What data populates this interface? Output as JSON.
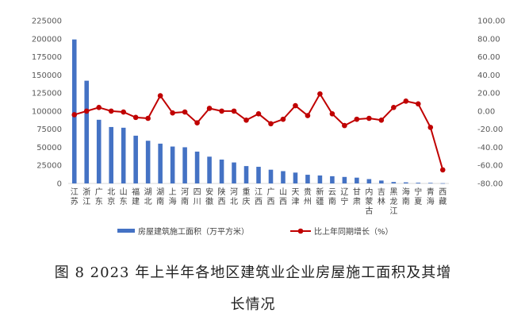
{
  "chart_data": {
    "type": "bar",
    "categories": [
      "江苏",
      "浙江",
      "广东",
      "北京",
      "山东",
      "福建",
      "湖北",
      "湖南",
      "上海",
      "河南",
      "四川",
      "安徽",
      "陕西",
      "河北",
      "重庆",
      "江西",
      "广西",
      "山西",
      "天津",
      "贵州",
      "新疆",
      "云南",
      "辽宁",
      "甘肃",
      "内蒙古",
      "吉林",
      "黑龙江",
      "海南",
      "宁夏",
      "青海",
      "西藏"
    ],
    "series": [
      {
        "name": "房屋建筑施工面积（万平方米）",
        "type": "bar",
        "axis": "left",
        "color": "#4472C4",
        "values": [
          199000,
          142000,
          88000,
          78000,
          77000,
          66000,
          59000,
          55000,
          51000,
          50000,
          44000,
          37000,
          33000,
          29000,
          24000,
          23000,
          19000,
          17000,
          15000,
          12000,
          11000,
          10000,
          9000,
          8000,
          6000,
          4000,
          2000,
          1500,
          1000,
          800,
          300
        ]
      },
      {
        "name": "比上年同期增长（%）",
        "type": "line",
        "axis": "right",
        "color": "#C00000",
        "values": [
          -4,
          0,
          4,
          0,
          -1,
          -7,
          -8,
          17,
          -2,
          -1,
          -13,
          3,
          0,
          0,
          -10,
          -3,
          -14,
          -9,
          6,
          -5,
          19,
          -3,
          -16,
          -9,
          -8,
          -10,
          4,
          11,
          8,
          -18,
          -65
        ]
      }
    ],
    "yAxisLeft": {
      "min": 0,
      "max": 225000,
      "step": 25000,
      "ticks": [
        "0",
        "25000",
        "50000",
        "75000",
        "100000",
        "125000",
        "150000",
        "175000",
        "200000",
        "225000"
      ]
    },
    "yAxisRight": {
      "min": -80,
      "max": 100,
      "step": 20,
      "ticks": [
        "-80.00",
        "-60.00",
        "-40.00",
        "-20.00",
        "0.00",
        "20.00",
        "40.00",
        "60.00",
        "80.00",
        "100.00"
      ]
    },
    "legend": {
      "position": "bottom",
      "bar_label": "房屋建筑施工面积（万平方米）",
      "line_label": "比上年同期增长（%）"
    },
    "grid": false
  },
  "caption": {
    "line1": "图 8 2023 年上半年各地区建筑业企业房屋施工面积及其增",
    "line2": "长情况"
  }
}
